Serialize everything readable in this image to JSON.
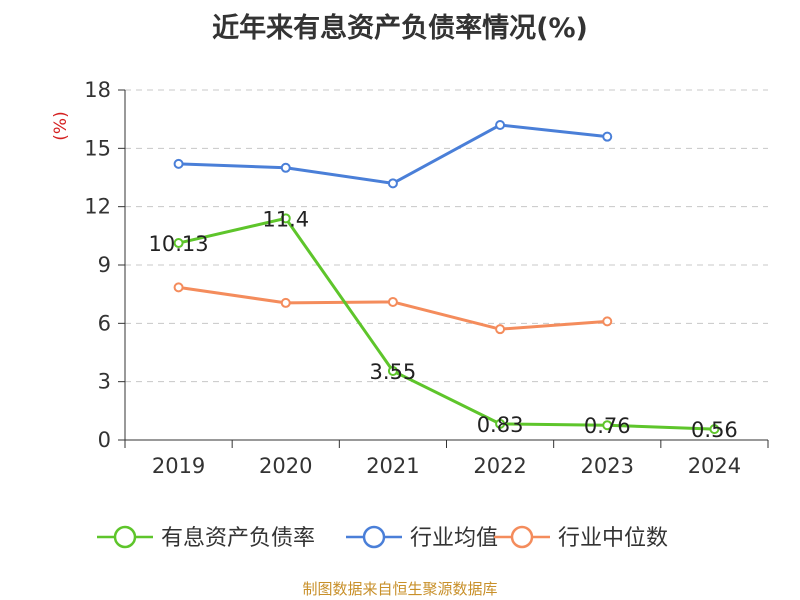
{
  "chart_data": {
    "type": "line",
    "title": "近年来有息资产负债率情况(%)",
    "ylabel": "(%)",
    "categories": [
      "2019",
      "2020",
      "2021",
      "2022",
      "2023",
      "2024"
    ],
    "ylim": [
      0,
      18
    ],
    "yticks": [
      0,
      3,
      6,
      9,
      12,
      15,
      18
    ],
    "grid": true,
    "legend_position": "bottom",
    "series": [
      {
        "name": "有息资产负债率",
        "color": "#5ec52b",
        "values": [
          10.13,
          11.4,
          3.55,
          0.83,
          0.76,
          0.56
        ],
        "labels": [
          "10.13",
          "11.4",
          "3.55",
          "0.83",
          "0.76",
          "0.56"
        ]
      },
      {
        "name": "行业均值",
        "color": "#4a7fd8",
        "values": [
          14.2,
          14.0,
          13.2,
          16.2,
          15.6,
          null
        ]
      },
      {
        "name": "行业中位数",
        "color": "#f48c5c",
        "values": [
          7.85,
          7.05,
          7.1,
          5.7,
          6.1,
          null
        ]
      }
    ]
  },
  "source_note": "制图数据来自恒生聚源数据库"
}
